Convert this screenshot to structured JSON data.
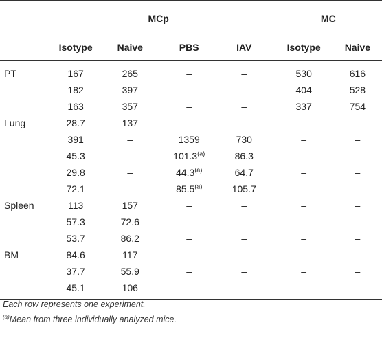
{
  "table": {
    "groups": {
      "mcp": "MCp",
      "mc": "MC"
    },
    "columns": [
      "Isotype",
      "Naive",
      "PBS",
      "IAV",
      "Isotype",
      "Naive"
    ],
    "rows": [
      {
        "label": "PT",
        "cells": [
          "167",
          "265",
          "–",
          "–",
          "530",
          "616"
        ],
        "sup": [
          "",
          "",
          "",
          "",
          "",
          ""
        ]
      },
      {
        "label": "",
        "cells": [
          "182",
          "397",
          "–",
          "–",
          "404",
          "528"
        ],
        "sup": [
          "",
          "",
          "",
          "",
          "",
          ""
        ]
      },
      {
        "label": "",
        "cells": [
          "163",
          "357",
          "–",
          "–",
          "337",
          "754"
        ],
        "sup": [
          "",
          "",
          "",
          "",
          "",
          ""
        ]
      },
      {
        "label": "Lung",
        "cells": [
          "28.7",
          "137",
          "–",
          "–",
          "–",
          "–"
        ],
        "sup": [
          "",
          "",
          "",
          "",
          "",
          ""
        ]
      },
      {
        "label": "",
        "cells": [
          "391",
          "–",
          "1359",
          "730",
          "–",
          "–"
        ],
        "sup": [
          "",
          "",
          "",
          "",
          "",
          ""
        ]
      },
      {
        "label": "",
        "cells": [
          "45.3",
          "–",
          "101.3",
          "86.3",
          "–",
          "–"
        ],
        "sup": [
          "",
          "",
          "(a)",
          "",
          "",
          ""
        ]
      },
      {
        "label": "",
        "cells": [
          "29.8",
          "–",
          "44.3",
          "64.7",
          "–",
          "–"
        ],
        "sup": [
          "",
          "",
          "(a)",
          "",
          "",
          ""
        ]
      },
      {
        "label": "",
        "cells": [
          "72.1",
          "–",
          "85.5",
          "105.7",
          "–",
          "–"
        ],
        "sup": [
          "",
          "",
          "(a)",
          "",
          "",
          ""
        ]
      },
      {
        "label": "Spleen",
        "cells": [
          "113",
          "157",
          "–",
          "–",
          "–",
          "–"
        ],
        "sup": [
          "",
          "",
          "",
          "",
          "",
          ""
        ]
      },
      {
        "label": "",
        "cells": [
          "57.3",
          "72.6",
          "–",
          "–",
          "–",
          "–"
        ],
        "sup": [
          "",
          "",
          "",
          "",
          "",
          ""
        ]
      },
      {
        "label": "",
        "cells": [
          "53.7",
          "86.2",
          "–",
          "–",
          "–",
          "–"
        ],
        "sup": [
          "",
          "",
          "",
          "",
          "",
          ""
        ]
      },
      {
        "label": "BM",
        "cells": [
          "84.6",
          "117",
          "–",
          "–",
          "–",
          "–"
        ],
        "sup": [
          "",
          "",
          "",
          "",
          "",
          ""
        ]
      },
      {
        "label": "",
        "cells": [
          "37.7",
          "55.9",
          "–",
          "–",
          "–",
          "–"
        ],
        "sup": [
          "",
          "",
          "",
          "",
          "",
          ""
        ]
      },
      {
        "label": "",
        "cells": [
          "45.1",
          "106",
          "–",
          "–",
          "–",
          "–"
        ],
        "sup": [
          "",
          "",
          "",
          "",
          "",
          ""
        ]
      }
    ]
  },
  "footnotes": {
    "line1": "Each row represents one experiment.",
    "line2_marker": "(a)",
    "line2_text": "Mean from three individually analyzed mice."
  }
}
